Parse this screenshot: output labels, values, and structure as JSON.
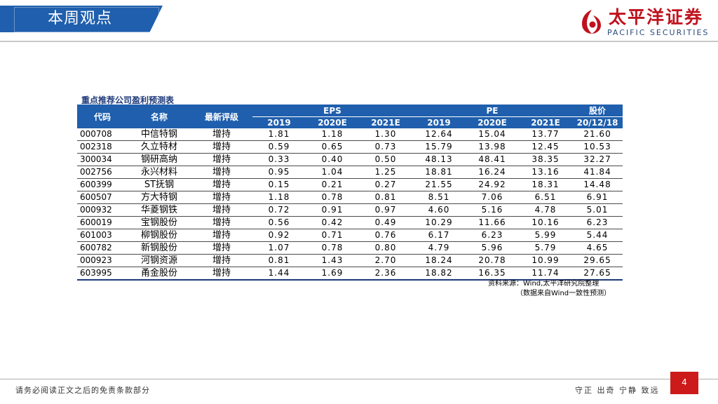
{
  "header": {
    "title": "本周观点",
    "logo": {
      "cn": "太平洋证券",
      "en": "PACIFIC SECURITIES",
      "brand_color": "#c0121e",
      "icon": "pacific-securities-logo-icon"
    }
  },
  "table": {
    "title": "重点推荐公司盈利预测表",
    "group_headers": {
      "eps": "EPS",
      "pe": "PE",
      "price": "股价"
    },
    "columns": {
      "code": "代码",
      "name": "名称",
      "rating": "最新评级",
      "eps_2019": "2019",
      "eps_2020e": "2020E",
      "eps_2021e": "2021E",
      "pe_2019": "2019",
      "pe_2020e": "2020E",
      "pe_2021e": "2021E",
      "price_date": "20/12/18"
    },
    "rows": [
      {
        "code": "000708",
        "name": "中信特钢",
        "rating": "增持",
        "eps_2019": "1.81",
        "eps_2020e": "1.18",
        "eps_2021e": "1.30",
        "pe_2019": "12.64",
        "pe_2020e": "15.04",
        "pe_2021e": "13.77",
        "price": "21.60"
      },
      {
        "code": "002318",
        "name": "久立特材",
        "rating": "增持",
        "eps_2019": "0.59",
        "eps_2020e": "0.65",
        "eps_2021e": "0.73",
        "pe_2019": "15.79",
        "pe_2020e": "13.98",
        "pe_2021e": "12.45",
        "price": "10.53"
      },
      {
        "code": "300034",
        "name": "钢研高纳",
        "rating": "增持",
        "eps_2019": "0.33",
        "eps_2020e": "0.40",
        "eps_2021e": "0.50",
        "pe_2019": "48.13",
        "pe_2020e": "48.41",
        "pe_2021e": "38.35",
        "price": "32.27"
      },
      {
        "code": "002756",
        "name": "永兴材料",
        "rating": "增持",
        "eps_2019": "0.95",
        "eps_2020e": "1.04",
        "eps_2021e": "1.25",
        "pe_2019": "18.81",
        "pe_2020e": "16.24",
        "pe_2021e": "13.16",
        "price": "41.84"
      },
      {
        "code": "600399",
        "name": "ST抚钢",
        "rating": "增持",
        "eps_2019": "0.15",
        "eps_2020e": "0.21",
        "eps_2021e": "0.27",
        "pe_2019": "21.55",
        "pe_2020e": "24.92",
        "pe_2021e": "18.31",
        "price": "14.48"
      },
      {
        "code": "600507",
        "name": "方大特钢",
        "rating": "增持",
        "eps_2019": "1.18",
        "eps_2020e": "0.78",
        "eps_2021e": "0.81",
        "pe_2019": "8.51",
        "pe_2020e": "7.06",
        "pe_2021e": "6.51",
        "price": "6.91"
      },
      {
        "code": "000932",
        "name": "华菱钢铁",
        "rating": "增持",
        "eps_2019": "0.72",
        "eps_2020e": "0.91",
        "eps_2021e": "0.97",
        "pe_2019": "4.60",
        "pe_2020e": "5.16",
        "pe_2021e": "4.78",
        "price": "5.01"
      },
      {
        "code": "600019",
        "name": "宝钢股份",
        "rating": "增持",
        "eps_2019": "0.56",
        "eps_2020e": "0.42",
        "eps_2021e": "0.49",
        "pe_2019": "10.29",
        "pe_2020e": "11.66",
        "pe_2021e": "10.16",
        "price": "6.23"
      },
      {
        "code": "601003",
        "name": "柳钢股份",
        "rating": "增持",
        "eps_2019": "0.92",
        "eps_2020e": "0.71",
        "eps_2021e": "0.76",
        "pe_2019": "6.17",
        "pe_2020e": "6.23",
        "pe_2021e": "5.99",
        "price": "5.44"
      },
      {
        "code": "600782",
        "name": "新钢股份",
        "rating": "增持",
        "eps_2019": "1.07",
        "eps_2020e": "0.78",
        "eps_2021e": "0.80",
        "pe_2019": "4.79",
        "pe_2020e": "5.96",
        "pe_2021e": "5.79",
        "price": "4.65"
      },
      {
        "code": "000923",
        "name": "河钢资源",
        "rating": "增持",
        "eps_2019": "0.81",
        "eps_2020e": "1.43",
        "eps_2021e": "2.70",
        "pe_2019": "18.24",
        "pe_2020e": "20.78",
        "pe_2021e": "10.99",
        "price": "29.65"
      },
      {
        "code": "603995",
        "name": "甬金股份",
        "rating": "增持",
        "eps_2019": "1.44",
        "eps_2020e": "1.69",
        "eps_2021e": "2.36",
        "pe_2019": "18.82",
        "pe_2020e": "16.35",
        "pe_2021e": "11.74",
        "price": "27.65"
      }
    ],
    "source": "资料来源：Wind,太平洋研究院整理",
    "source_note": "（数据来自Wind一致性预测）"
  },
  "footer": {
    "disclaimer": "请务必阅读正文之后的免责条款部分",
    "motto": "守正 出奇 宁静 致远",
    "page_number": "4"
  },
  "colors": {
    "accent": "#1f5fad",
    "brand_red": "#c0121e",
    "page_badge": "#cc1a1a"
  }
}
